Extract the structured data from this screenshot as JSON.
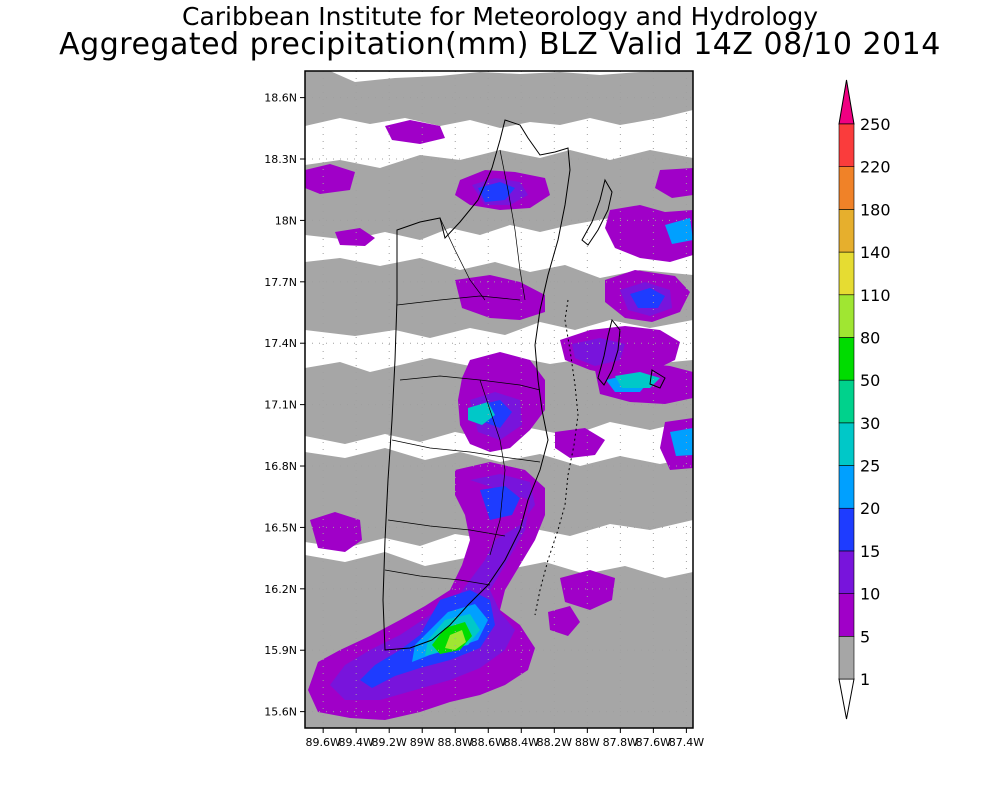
{
  "title": {
    "line1": "Caribbean Institute for Meteorology and Hydrology",
    "line2": "Aggregated precipitation(mm) BLZ Valid 14Z 08/10 2014"
  },
  "map": {
    "lat_range": [
      15.52,
      18.73
    ],
    "lon_range": [
      -89.71,
      -87.36
    ],
    "y_ticks": [
      {
        "lat": 18.6,
        "label": "18.6N"
      },
      {
        "lat": 18.3,
        "label": "18.3N"
      },
      {
        "lat": 18.0,
        "label": "18N"
      },
      {
        "lat": 17.7,
        "label": "17.7N"
      },
      {
        "lat": 17.4,
        "label": "17.4N"
      },
      {
        "lat": 17.1,
        "label": "17.1N"
      },
      {
        "lat": 16.8,
        "label": "16.8N"
      },
      {
        "lat": 16.5,
        "label": "16.5N"
      },
      {
        "lat": 16.2,
        "label": "16.2N"
      },
      {
        "lat": 15.9,
        "label": "15.9N"
      },
      {
        "lat": 15.6,
        "label": "15.6N"
      }
    ],
    "x_ticks": [
      {
        "lon": -89.6,
        "label": "89.6W"
      },
      {
        "lon": -89.4,
        "label": "89.4W"
      },
      {
        "lon": -89.2,
        "label": "89.2W"
      },
      {
        "lon": -89.0,
        "label": "89W"
      },
      {
        "lon": -88.8,
        "label": "88.8W"
      },
      {
        "lon": -88.6,
        "label": "88.6W"
      },
      {
        "lon": -88.4,
        "label": "88.4W"
      },
      {
        "lon": -88.2,
        "label": "88.2W"
      },
      {
        "lon": -88.0,
        "label": "88W"
      },
      {
        "lon": -87.8,
        "label": "87.8W"
      },
      {
        "lon": -87.6,
        "label": "87.6W"
      },
      {
        "lon": -87.4,
        "label": "87.4W"
      }
    ]
  },
  "legend": {
    "levels": [
      {
        "label": "1",
        "color": "#ffffff"
      },
      {
        "label": "5",
        "color": "#a6a6a6"
      },
      {
        "label": "10",
        "color": "#a000c8"
      },
      {
        "label": "15",
        "color": "#7814dc"
      },
      {
        "label": "20",
        "color": "#1e3cff"
      },
      {
        "label": "25",
        "color": "#00a0ff"
      },
      {
        "label": "30",
        "color": "#00c8c8"
      },
      {
        "label": "50",
        "color": "#00d28c"
      },
      {
        "label": "80",
        "color": "#00dc00"
      },
      {
        "label": "110",
        "color": "#a0e632"
      },
      {
        "label": "140",
        "color": "#e6dc32"
      },
      {
        "label": "180",
        "color": "#e6af2d"
      },
      {
        "label": "220",
        "color": "#f08228"
      },
      {
        "label": "250",
        "color": "#fa3c3c"
      }
    ],
    "overflow_color": "#f00082",
    "underflow_color": "#ffffff"
  },
  "colors": {
    "background": "#ffffff",
    "frame": "#000000",
    "grid": "#a0a0a0",
    "coast": "#000000"
  }
}
